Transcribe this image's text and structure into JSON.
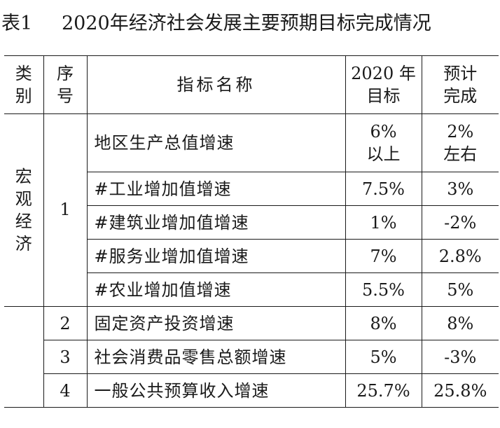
{
  "title": {
    "number": "表1",
    "text": "2020年经济社会发展主要预期目标完成情况"
  },
  "headers": {
    "category": [
      "类",
      "别"
    ],
    "seq": [
      "序",
      "号"
    ],
    "name": "指标名称",
    "target": [
      "2020 年",
      "目标"
    ],
    "expected": [
      "预计",
      "完成"
    ]
  },
  "category": [
    "宏",
    "观",
    "经",
    "济"
  ],
  "rows": [
    {
      "seq": "1",
      "name": "地区生产总值增速",
      "target": [
        "6%",
        "以上"
      ],
      "expected": [
        "2%",
        "左右"
      ]
    },
    {
      "seq": "",
      "name": "#工业增加值增速",
      "target": [
        "7.5%"
      ],
      "expected": [
        "3%"
      ]
    },
    {
      "seq": "",
      "name": "#建筑业增加值增速",
      "target": [
        "1%"
      ],
      "expected": [
        "-2%"
      ]
    },
    {
      "seq": "",
      "name": "#服务业增加值增速",
      "target": [
        "7%"
      ],
      "expected": [
        "2.8%"
      ]
    },
    {
      "seq": "",
      "name": "#农业增加值增速",
      "target": [
        "5.5%"
      ],
      "expected": [
        "5%"
      ]
    },
    {
      "seq": "2",
      "name": "固定资产投资增速",
      "target": [
        "8%"
      ],
      "expected": [
        "8%"
      ]
    },
    {
      "seq": "3",
      "name": "社会消费品零售总额增速",
      "target": [
        "5%"
      ],
      "expected": [
        "-3%"
      ]
    },
    {
      "seq": "4",
      "name": "一般公共预算收入增速",
      "target": [
        "25.7%"
      ],
      "expected": [
        "25.8%"
      ]
    }
  ]
}
